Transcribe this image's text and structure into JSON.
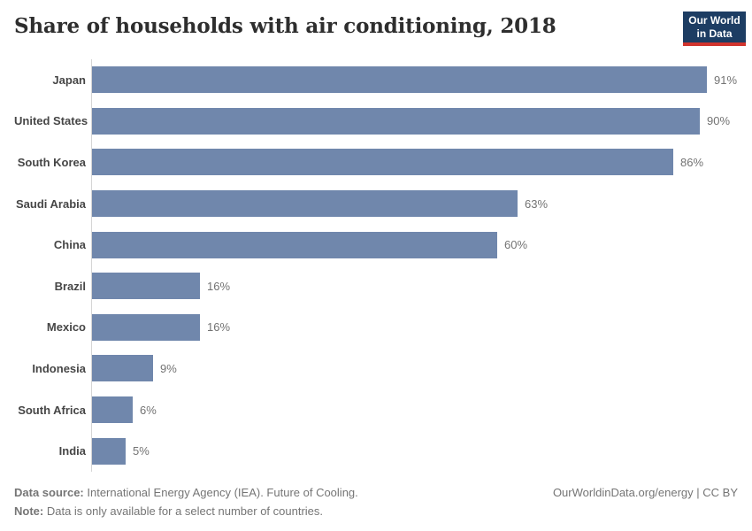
{
  "header": {
    "title": "Share of households with air conditioning, 2018",
    "logo": {
      "line1": "Our World",
      "line2": "in Data"
    }
  },
  "chart_data": {
    "type": "bar",
    "orientation": "horizontal",
    "title": "Share of households with air conditioning, 2018",
    "categories": [
      "Japan",
      "United States",
      "South Korea",
      "Saudi Arabia",
      "China",
      "Brazil",
      "Mexico",
      "Indonesia",
      "South Africa",
      "India"
    ],
    "values": [
      91,
      90,
      86,
      63,
      60,
      16,
      16,
      9,
      6,
      5
    ],
    "value_labels": [
      "91%",
      "90%",
      "86%",
      "63%",
      "60%",
      "16%",
      "16%",
      "9%",
      "6%",
      "5%"
    ],
    "unit": "%",
    "xlim": [
      0,
      100
    ],
    "grid": false,
    "legend": "none",
    "bar_color": "#7087ac",
    "axis_line_color": "#d5d5d5"
  },
  "footer": {
    "source_label": "Data source:",
    "source_text": "International Energy Agency (IEA). Future of Cooling.",
    "note_label": "Note:",
    "note_text": "Data is only available for a select number of countries.",
    "credit": "OurWorldinData.org/energy | CC BY"
  },
  "colors": {
    "bar": "#7087ac",
    "logo_background": "#1d3d63",
    "logo_underline": "#d1342e",
    "title_text": "#2e2e2e",
    "category_text": "#464646",
    "value_text": "#737373",
    "footer_text": "#757575"
  }
}
